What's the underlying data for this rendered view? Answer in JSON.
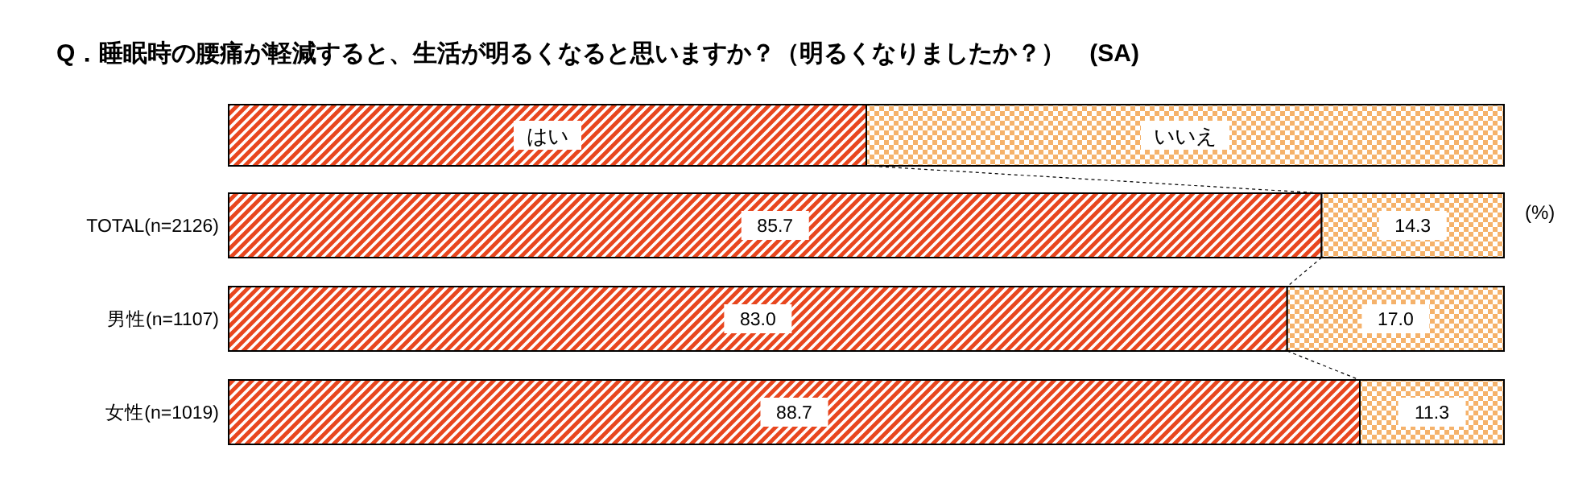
{
  "chart_data": {
    "type": "bar",
    "orientation": "horizontal",
    "stacked": true,
    "legend": "top",
    "title": "Q．睡眠時の腰痛が軽減すると、生活が明るくなると思いますか？（明るくなりましたか？）　(SA)",
    "categories": [
      "TOTAL(n=2126)",
      "男性(n=1107)",
      "女性(n=1019)"
    ],
    "series": [
      {
        "name": "はい",
        "color": "#e8461e",
        "values": [
          85.7,
          83.0,
          88.7
        ],
        "value_labels": [
          "85.7",
          "83.0",
          "88.7"
        ]
      },
      {
        "name": "いいえ",
        "color": "#f5b26b",
        "values": [
          14.3,
          17.0,
          11.3
        ],
        "value_labels": [
          "14.3",
          "17.0",
          "11.3"
        ]
      }
    ],
    "annotations": [
      "(%)"
    ]
  }
}
